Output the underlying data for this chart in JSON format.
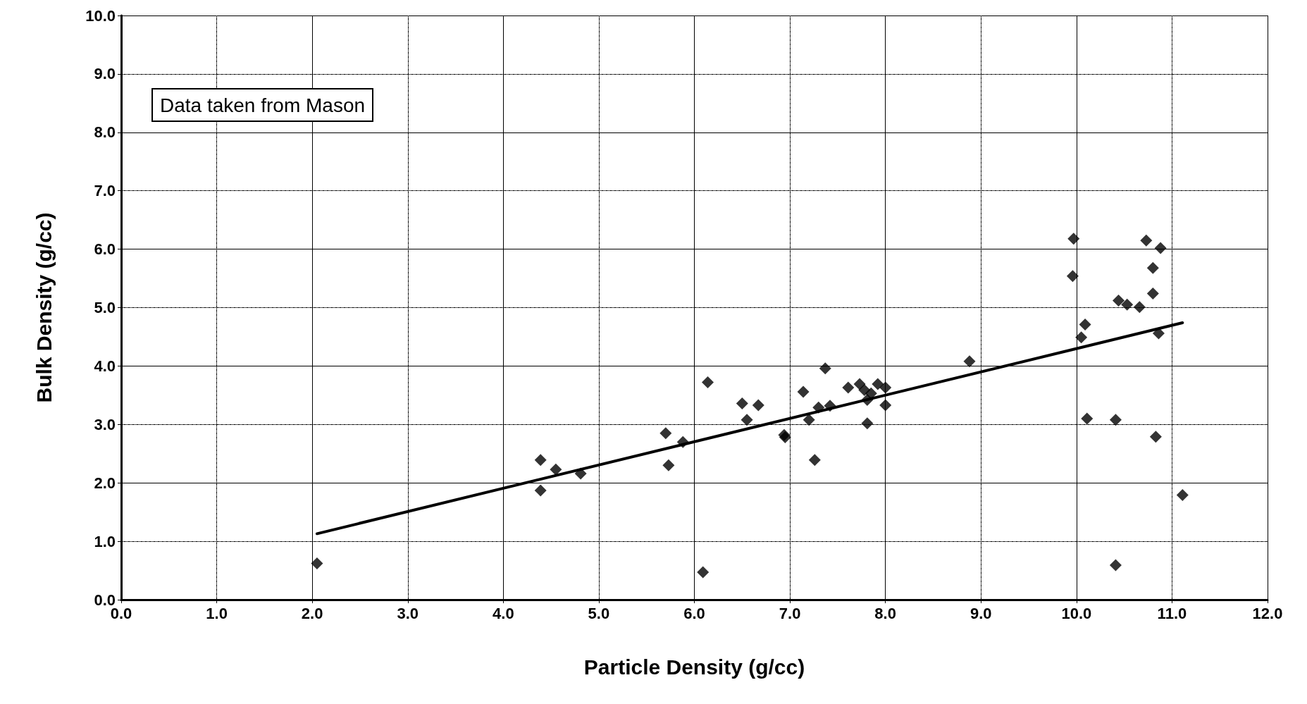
{
  "chart_data": {
    "type": "scatter",
    "xlabel": "Particle Density (g/cc)",
    "ylabel": "Bulk Density (g/cc)",
    "annotations": [
      "Data taken from Mason"
    ],
    "xlim": [
      0,
      12
    ],
    "ylim": [
      0,
      10
    ],
    "xticks": [
      {
        "value": 0,
        "label": "0.0"
      },
      {
        "value": 1,
        "label": "1.0"
      },
      {
        "value": 2,
        "label": "2.0"
      },
      {
        "value": 3,
        "label": "3.0"
      },
      {
        "value": 4,
        "label": "4.0"
      },
      {
        "value": 5,
        "label": "5.0"
      },
      {
        "value": 6,
        "label": "6.0"
      },
      {
        "value": 7,
        "label": "7.0"
      },
      {
        "value": 8,
        "label": "8.0"
      },
      {
        "value": 9,
        "label": "9.0"
      },
      {
        "value": 10,
        "label": "10.0"
      },
      {
        "value": 11,
        "label": "11.0"
      },
      {
        "value": 12,
        "label": "12.0"
      }
    ],
    "yticks": [
      {
        "value": 0,
        "label": "0.0"
      },
      {
        "value": 1,
        "label": "1.0"
      },
      {
        "value": 2,
        "label": "2.0"
      },
      {
        "value": 3,
        "label": "3.0"
      },
      {
        "value": 4,
        "label": "4.0"
      },
      {
        "value": 5,
        "label": "5.0"
      },
      {
        "value": 6,
        "label": "6.0"
      },
      {
        "value": 7,
        "label": "7.0"
      },
      {
        "value": 8,
        "label": "8.0"
      },
      {
        "value": 9,
        "label": "9.0"
      },
      {
        "value": 10,
        "label": "10.0"
      }
    ],
    "grid": true,
    "marker": "diamond",
    "series": [
      {
        "color": "#000000",
        "x": [
          2.05,
          4.39,
          4.39,
          4.55,
          4.81,
          5.7,
          5.73,
          5.88,
          6.14,
          6.09,
          6.5,
          6.55,
          6.67,
          6.94,
          6.95,
          7.14,
          7.2,
          7.26,
          7.3,
          7.37,
          7.42,
          7.61,
          7.73,
          7.78,
          7.81,
          7.85,
          7.81,
          7.92,
          8.0,
          8.0,
          8.88,
          9.97,
          9.96,
          10.09,
          10.05,
          10.11,
          10.41,
          10.41,
          10.44,
          10.53,
          10.66,
          10.73,
          10.8,
          10.8,
          10.83,
          10.86,
          10.88,
          11.11
        ],
        "values": [
          0.62,
          2.39,
          1.87,
          2.23,
          2.16,
          2.85,
          2.3,
          2.7,
          3.72,
          0.47,
          3.36,
          3.08,
          3.33,
          2.82,
          2.78,
          3.56,
          3.08,
          2.39,
          3.29,
          3.96,
          3.32,
          3.63,
          3.69,
          3.59,
          3.42,
          3.53,
          3.02,
          3.69,
          3.63,
          3.33,
          4.08,
          6.18,
          5.54,
          4.71,
          4.49,
          3.1,
          3.08,
          0.59,
          5.12,
          5.05,
          5.01,
          6.15,
          5.68,
          5.24,
          2.79,
          4.56,
          6.02,
          1.79
        ]
      },
      {
        "type": "line",
        "color": "#000000",
        "marker": "none",
        "line_style": "solid",
        "x": [
          2.05,
          11.11
        ],
        "values": [
          1.13,
          4.74
        ]
      }
    ]
  }
}
